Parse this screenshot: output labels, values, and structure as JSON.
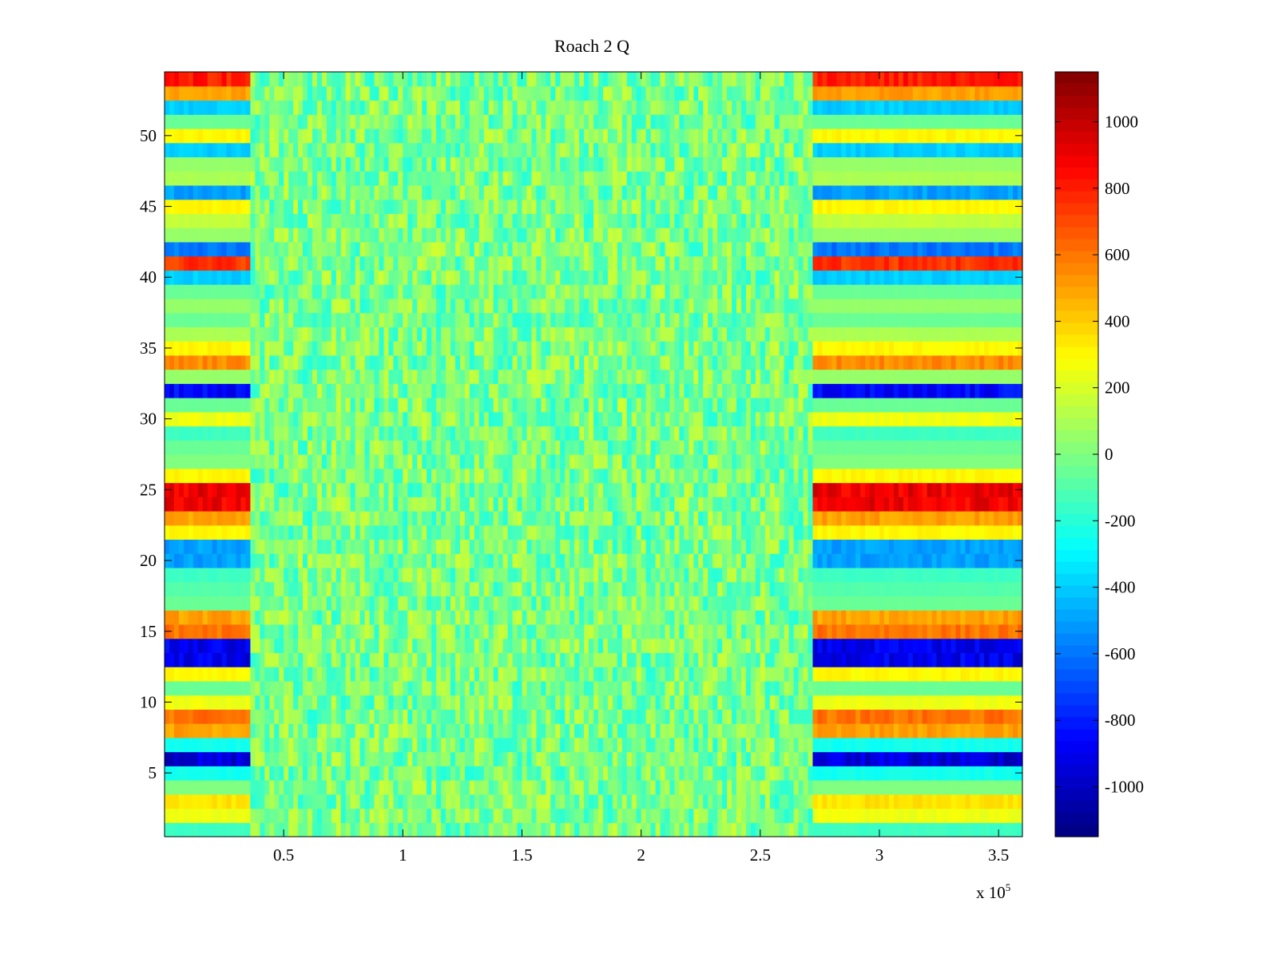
{
  "chart_data": {
    "type": "heatmap",
    "title": "Roach 2 Q",
    "xlabel": "",
    "ylabel": "",
    "x_multiplier_label": "x 10",
    "x_multiplier_exponent": "5",
    "xlim": [
      0,
      3.6
    ],
    "ylim": [
      0.5,
      54.5
    ],
    "x_scale": 100000,
    "x_ticks": [
      0.5,
      1,
      1.5,
      2,
      2.5,
      3,
      3.5
    ],
    "x_tick_labels": [
      "0.5",
      "1",
      "1.5",
      "2",
      "2.5",
      "3",
      "3.5"
    ],
    "y_ticks": [
      5,
      10,
      15,
      20,
      25,
      30,
      35,
      40,
      45,
      50
    ],
    "y_tick_labels": [
      "5",
      "10",
      "15",
      "20",
      "25",
      "30",
      "35",
      "40",
      "45",
      "50"
    ],
    "colormap": "jet",
    "clim": [
      -1150,
      1150
    ],
    "colorbar_ticks": [
      1000,
      800,
      600,
      400,
      200,
      0,
      -200,
      -400,
      -600,
      -800,
      -1000
    ],
    "colorbar_tick_labels": [
      "1000",
      "800",
      "600",
      "400",
      "200",
      "0",
      "-200",
      "-400",
      "-600",
      "-800",
      "-1000"
    ],
    "active_segments_x": [
      [
        0,
        0.355
      ],
      [
        2.72,
        3.6
      ]
    ],
    "quiet_segment_x": [
      0.355,
      2.72
    ],
    "quiet_noise_range": [
      -200,
      200
    ],
    "channel_levels": [
      -150,
      250,
      350,
      0,
      -250,
      -950,
      -250,
      500,
      600,
      250,
      -50,
      300,
      -900,
      -900,
      600,
      500,
      -50,
      -100,
      -150,
      -500,
      -500,
      300,
      500,
      900,
      900,
      300,
      0,
      -50,
      -150,
      250,
      -50,
      -850,
      50,
      550,
      300,
      100,
      -50,
      50,
      -50,
      -400,
      750,
      -600,
      50,
      150,
      300,
      -500,
      100,
      50,
      -400,
      300,
      -50,
      -400,
      500,
      800
    ]
  }
}
